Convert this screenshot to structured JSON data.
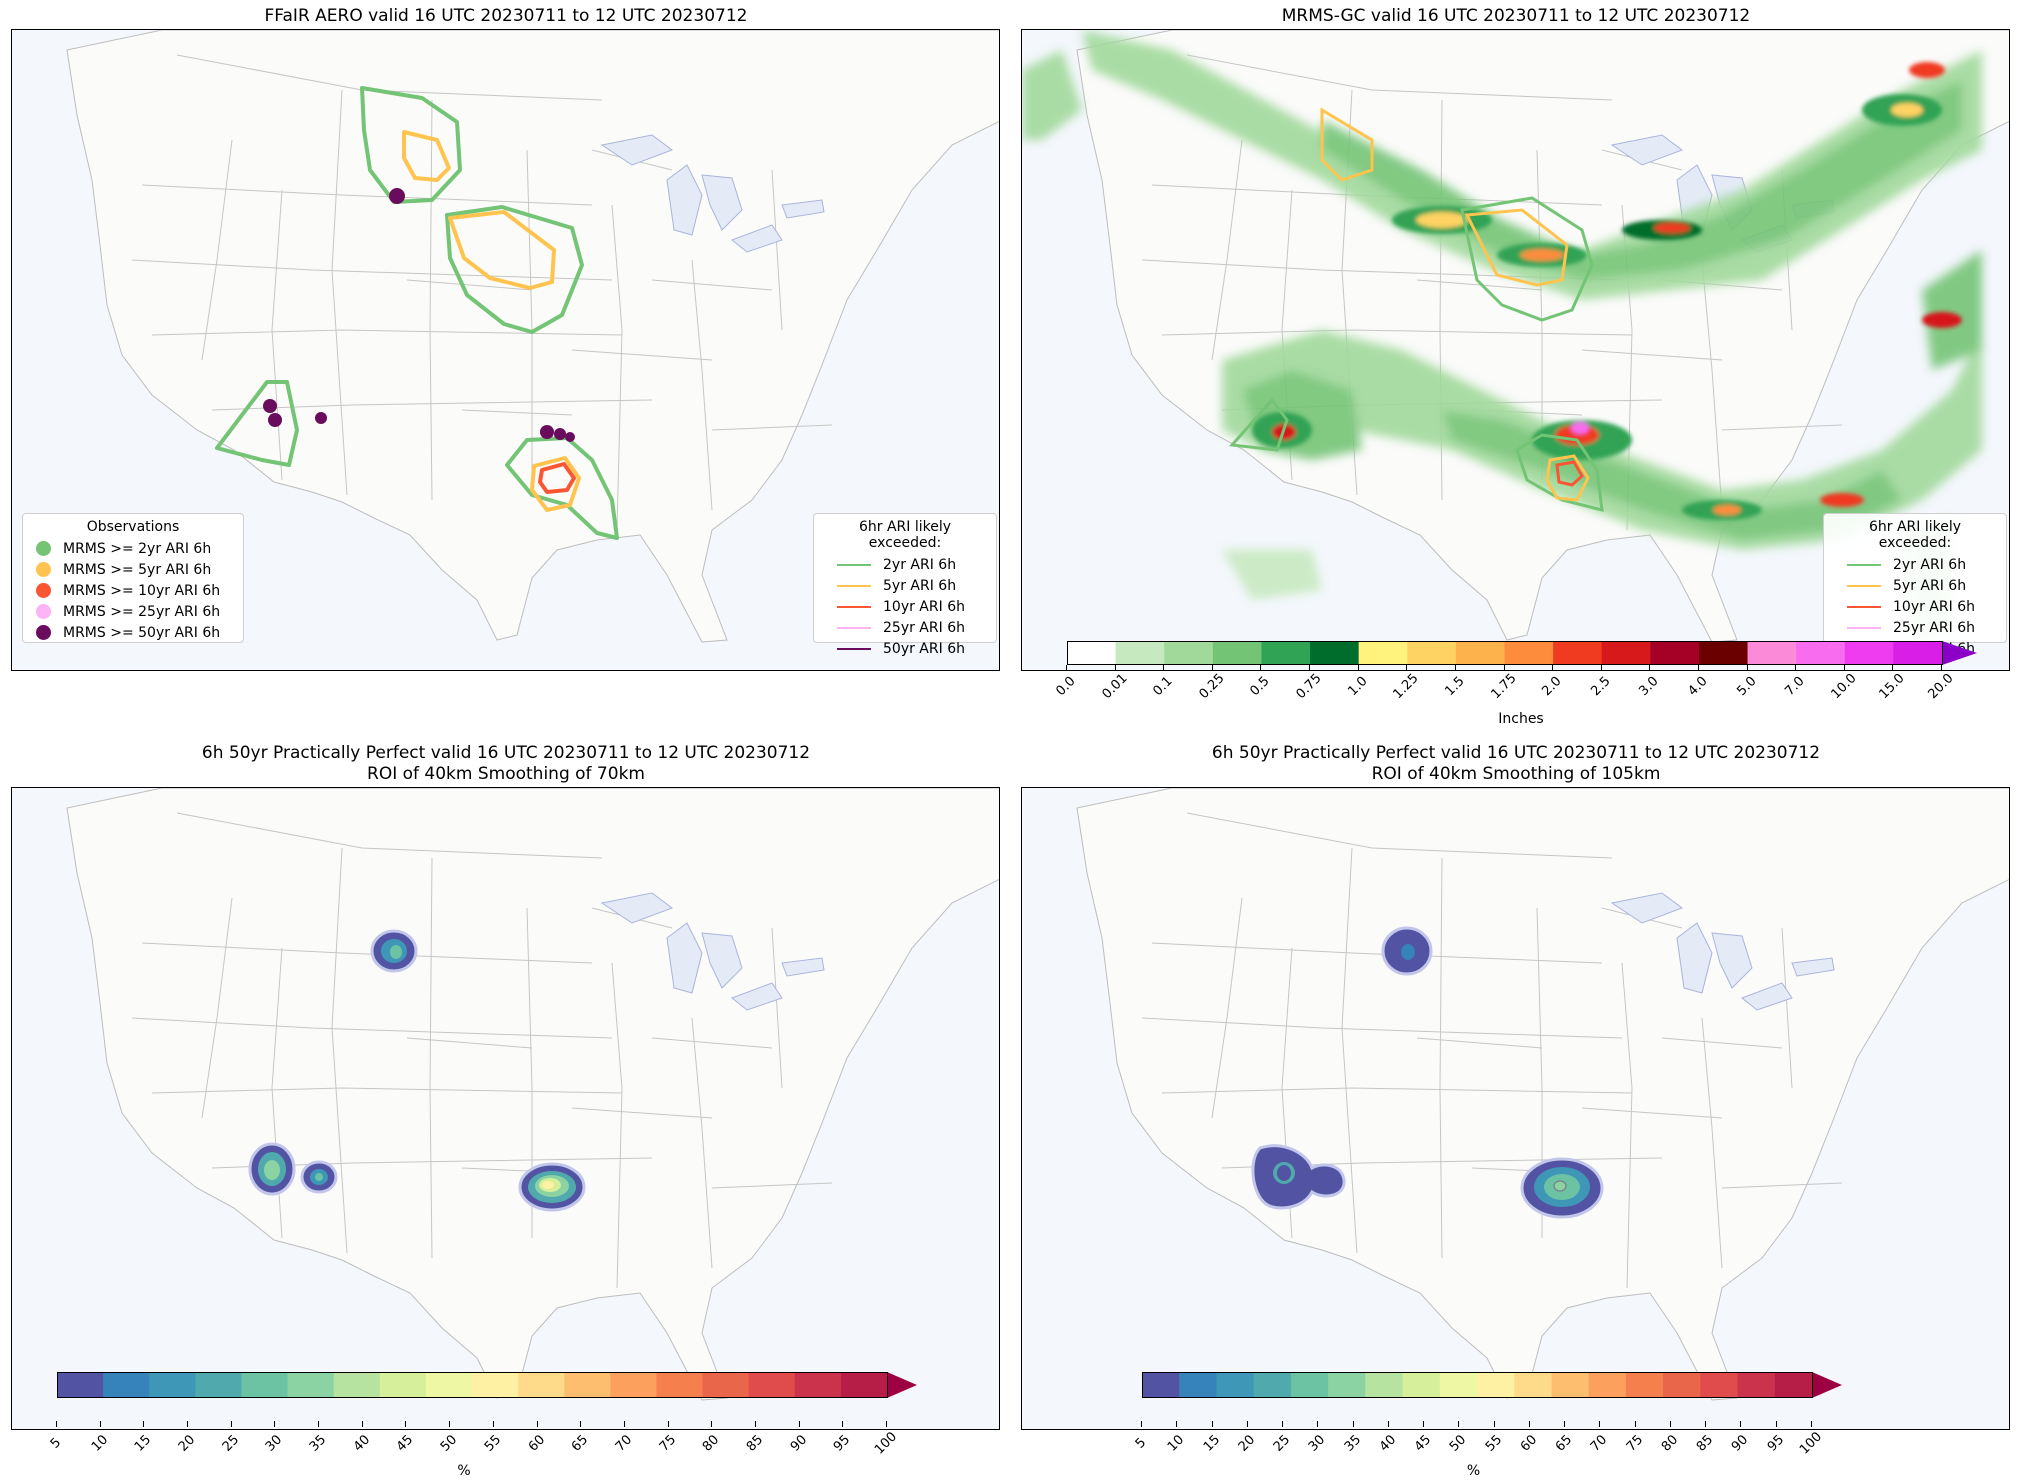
{
  "panels": [
    {
      "id": "tl",
      "title": "FFaIR AERO valid 16 UTC 20230711 to 12 UTC 20230712"
    },
    {
      "id": "tr",
      "title": "MRMS-GC valid 16 UTC 20230711 to 12 UTC 20230712"
    },
    {
      "id": "bl",
      "title": "6h 50yr Practically Perfect valid 16 UTC 20230711 to 12 UTC 20230712\nROI of 40km Smoothing of 70km"
    },
    {
      "id": "br",
      "title": "6h 50yr Practically Perfect valid 16 UTC 20230711 to 12 UTC 20230712\nROI of 40km Smoothing of 105km"
    }
  ],
  "legends": {
    "observations": {
      "title": "Observations",
      "items": [
        {
          "label": "MRMS >= 2yr ARI 6h",
          "color": "#74c476"
        },
        {
          "label": "MRMS >= 5yr ARI 6h",
          "color": "#fec44f"
        },
        {
          "label": "MRMS >= 10yr ARI 6h",
          "color": "#fb5634"
        },
        {
          "label": "MRMS >= 25yr ARI 6h",
          "color": "#fbb4f5"
        },
        {
          "label": "MRMS >= 50yr ARI 6h",
          "color": "#6a0c5e"
        }
      ]
    },
    "ari": {
      "title": "6hr ARI likely exceeded:",
      "items": [
        {
          "label": "2yr ARI 6h",
          "color": "#74c476"
        },
        {
          "label": "5yr ARI 6h",
          "color": "#fec44f"
        },
        {
          "label": "10yr ARI 6h",
          "color": "#fb5634"
        },
        {
          "label": "25yr ARI 6h",
          "color": "#fbb4f5"
        },
        {
          "label": "50yr ARI 6h",
          "color": "#6a0c5e"
        }
      ]
    }
  },
  "precip_colorbar": {
    "label": "Inches",
    "ticks": [
      "0.0",
      "0.01",
      "0.1",
      "0.25",
      "0.5",
      "0.75",
      "1.0",
      "1.25",
      "1.5",
      "1.75",
      "2.0",
      "2.5",
      "3.0",
      "4.0",
      "5.0",
      "7.0",
      "10.0",
      "15.0",
      "20.0"
    ],
    "colors": [
      "#ffffff",
      "#c7e9c0",
      "#a1d99b",
      "#74c476",
      "#31a354",
      "#006d2c",
      "#fff37e",
      "#fed263",
      "#feb24c",
      "#fd8d3c",
      "#f03b20",
      "#d7191c",
      "#a50026",
      "#6b0000",
      "#fb8bd9",
      "#f86cf0",
      "#f03cf0",
      "#d91ee8",
      "#8a00c8"
    ]
  },
  "prob_colorbar": {
    "label": "%",
    "ticks": [
      "5",
      "10",
      "15",
      "20",
      "25",
      "30",
      "35",
      "40",
      "45",
      "50",
      "55",
      "60",
      "65",
      "70",
      "75",
      "80",
      "85",
      "90",
      "95",
      "100"
    ],
    "colors": [
      "#5254a3",
      "#3682ba",
      "#3f97b7",
      "#4fa9ad",
      "#6bc3a4",
      "#8cd3a4",
      "#b6e3a0",
      "#d5ef9b",
      "#eef7a3",
      "#fff1a3",
      "#fedb8b",
      "#fdbf6f",
      "#fca05d",
      "#f5804e",
      "#e9664a",
      "#df4c4b",
      "#cb334c",
      "#b61e48",
      "#9e0142"
    ]
  }
}
